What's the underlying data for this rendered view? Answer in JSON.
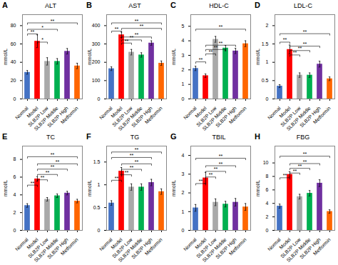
{
  "chart_data": [
    {
      "type": "bar",
      "panel_label": "A",
      "title": "ALT",
      "ylabel": "mmol/L",
      "categories": [
        "Normal",
        "Model",
        "SLB2P Low",
        "SLB2P Middle",
        "SLB2P High",
        "Metformin"
      ],
      "values": [
        29,
        63,
        41,
        41,
        52,
        36
      ],
      "errors": [
        2,
        7,
        4,
        3,
        3,
        3
      ],
      "colors": [
        "#4472C4",
        "#FF0000",
        "#A9A9A9",
        "#00B050",
        "#7030A0",
        "#FF6600"
      ],
      "ylim": [
        0,
        92
      ],
      "yticks": [
        0,
        20,
        40,
        60,
        80
      ],
      "brackets": [
        {
          "x1": "Normal",
          "x2": "Model",
          "y": 71,
          "label": "**"
        },
        {
          "x1": "Model",
          "x2": "SLB2P Low",
          "y": 62,
          "label": "*"
        },
        {
          "x1": "Normal",
          "x2": "SLB2P Middle",
          "y": 76,
          "label": "*"
        },
        {
          "x1": "Normal",
          "x2": "Metformin",
          "y": 83,
          "label": "**"
        }
      ]
    },
    {
      "type": "bar",
      "panel_label": "B",
      "title": "AST",
      "ylabel": "mmol/L",
      "categories": [
        "Normal",
        "Model",
        "SLB2P Low",
        "SLB2P Middle",
        "SLB2P High",
        "Metformin"
      ],
      "values": [
        165,
        350,
        255,
        240,
        305,
        195
      ],
      "errors": [
        10,
        15,
        15,
        12,
        12,
        12
      ],
      "colors": [
        "#4472C4",
        "#FF0000",
        "#A9A9A9",
        "#00B050",
        "#7030A0",
        "#FF6600"
      ],
      "ylim": [
        0,
        460
      ],
      "yticks": [
        0,
        100,
        200,
        300,
        400
      ],
      "brackets": [
        {
          "x1": "Normal",
          "x2": "Model",
          "y": 370,
          "label": "**"
        },
        {
          "x1": "Model",
          "x2": "SLB2P Low",
          "y": 305,
          "label": "**"
        },
        {
          "x1": "Model",
          "x2": "SLB2P Middle",
          "y": 322,
          "label": "**"
        },
        {
          "x1": "Model",
          "x2": "SLB2P High",
          "y": 338,
          "label": "**"
        },
        {
          "x1": "Model",
          "x2": "Metformin",
          "y": 385,
          "label": "**"
        },
        {
          "x1": "Normal",
          "x2": "Metformin",
          "y": 415,
          "label": "**"
        }
      ]
    },
    {
      "type": "bar",
      "panel_label": "C",
      "title": "HDL-C",
      "ylabel": "mmol/L",
      "categories": [
        "Normal",
        "Model",
        "SLB2P Low",
        "SLB2P Middle",
        "SLB2P High",
        "Metformin"
      ],
      "values": [
        2.1,
        1.6,
        4.1,
        3.5,
        3.3,
        3.8
      ],
      "errors": [
        0.15,
        0.12,
        0.2,
        0.18,
        0.18,
        0.2
      ],
      "colors": [
        "#4472C4",
        "#FF0000",
        "#A9A9A9",
        "#00B050",
        "#7030A0",
        "#FF6600"
      ],
      "ylim": [
        0,
        5.8
      ],
      "yticks": [
        0,
        1,
        2,
        3,
        4,
        5
      ],
      "brackets": [
        {
          "x1": "Normal",
          "x2": "Model",
          "y": 2.55,
          "label": "**"
        },
        {
          "x1": "Model",
          "x2": "SLB2P Low",
          "y": 3.1,
          "label": "**"
        },
        {
          "x1": "Model",
          "x2": "SLB2P Middle",
          "y": 3.4,
          "label": "**"
        },
        {
          "x1": "Model",
          "x2": "SLB2P High",
          "y": 3.7,
          "label": "**"
        },
        {
          "x1": "Normal",
          "x2": "Metformin",
          "y": 4.8,
          "label": "**"
        }
      ]
    },
    {
      "type": "bar",
      "panel_label": "D",
      "title": "LDL-C",
      "ylabel": "mmol/L",
      "categories": [
        "Normal",
        "Model",
        "SLB2P Low",
        "SLB2P Middle",
        "SLB2P High",
        "Metformin"
      ],
      "values": [
        0.35,
        1.35,
        0.65,
        0.65,
        0.95,
        0.55
      ],
      "errors": [
        0.04,
        0.12,
        0.06,
        0.06,
        0.08,
        0.05
      ],
      "colors": [
        "#4472C4",
        "#FF0000",
        "#A9A9A9",
        "#00B050",
        "#7030A0",
        "#FF6600"
      ],
      "ylim": [
        0,
        2.3
      ],
      "yticks": [
        0,
        0.5,
        1,
        1.5,
        2
      ],
      "brackets": [
        {
          "x1": "Normal",
          "x2": "Model",
          "y": 1.55,
          "label": "**"
        },
        {
          "x1": "Model",
          "x2": "SLB2P Low",
          "y": 1.2,
          "label": "**"
        },
        {
          "x1": "Model",
          "x2": "SLB2P Middle",
          "y": 1.32,
          "label": "**"
        },
        {
          "x1": "Model",
          "x2": "SLB2P High",
          "y": 1.44,
          "label": "**"
        },
        {
          "x1": "Normal",
          "x2": "Metformin",
          "y": 1.78,
          "label": "**"
        }
      ]
    },
    {
      "type": "bar",
      "panel_label": "E",
      "title": "TC",
      "ylabel": "mmol/L",
      "categories": [
        "Normal",
        "Model",
        "SLB2P Low",
        "SLB2P Middle",
        "SLB2P High",
        "Metformin"
      ],
      "values": [
        2.8,
        5.8,
        3.5,
        3.9,
        4.2,
        3.3
      ],
      "errors": [
        0.2,
        0.25,
        0.2,
        0.2,
        0.2,
        0.2
      ],
      "colors": [
        "#4472C4",
        "#FF0000",
        "#A9A9A9",
        "#00B050",
        "#7030A0",
        "#FF6600"
      ],
      "ylim": [
        0,
        9.5
      ],
      "yticks": [
        0,
        2,
        4,
        6,
        8
      ],
      "brackets": [
        {
          "x1": "Normal",
          "x2": "Model",
          "y": 5.1,
          "label": "**"
        },
        {
          "x1": "Model",
          "x2": "SLB2P Low",
          "y": 5.7,
          "label": "**"
        },
        {
          "x1": "Model",
          "x2": "SLB2P Middle",
          "y": 6.3,
          "label": "**"
        },
        {
          "x1": "Model",
          "x2": "SLB2P High",
          "y": 6.9,
          "label": "**"
        },
        {
          "x1": "Model",
          "x2": "Metformin",
          "y": 7.5,
          "label": "**"
        },
        {
          "x1": "Normal",
          "x2": "Metformin",
          "y": 8.3,
          "label": "**"
        }
      ]
    },
    {
      "type": "bar",
      "panel_label": "F",
      "title": "TG",
      "ylabel": "mmol/L",
      "categories": [
        "Normal",
        "Model",
        "SLB2P Low",
        "SLB2P Middle",
        "SLB2P High",
        "Metformin"
      ],
      "values": [
        0.6,
        1.3,
        0.95,
        0.95,
        1.05,
        0.85
      ],
      "errors": [
        0.05,
        0.08,
        0.07,
        0.07,
        0.07,
        0.06
      ],
      "colors": [
        "#4472C4",
        "#FF0000",
        "#A9A9A9",
        "#00B050",
        "#7030A0",
        "#FF6600"
      ],
      "ylim": [
        0,
        1.85
      ],
      "yticks": [
        0,
        0.5,
        1,
        1.5
      ],
      "brackets": [
        {
          "x1": "Normal",
          "x2": "Model",
          "y": 1.1,
          "label": "**"
        },
        {
          "x1": "Model",
          "x2": "SLB2P Low",
          "y": 1.22,
          "label": "**"
        },
        {
          "x1": "Model",
          "x2": "SLB2P Middle",
          "y": 1.34,
          "label": "**"
        },
        {
          "x1": "Model",
          "x2": "SLB2P High",
          "y": 1.46,
          "label": "**"
        },
        {
          "x1": "Normal",
          "x2": "SLB2P High",
          "y": 1.6,
          "label": "**"
        },
        {
          "x1": "Normal",
          "x2": "Metformin",
          "y": 1.72,
          "label": "**"
        }
      ]
    },
    {
      "type": "bar",
      "panel_label": "G",
      "title": "TBIL",
      "ylabel": "mmol/L",
      "categories": [
        "Normal",
        "Model",
        "SLB2P Low",
        "SLB2P Middle",
        "SLB2P High",
        "Metformin"
      ],
      "values": [
        1.2,
        2.8,
        1.5,
        1.4,
        1.5,
        1.25
      ],
      "errors": [
        0.18,
        0.3,
        0.18,
        0.15,
        0.2,
        0.18
      ],
      "colors": [
        "#4472C4",
        "#FF0000",
        "#A9A9A9",
        "#00B050",
        "#7030A0",
        "#FF6600"
      ],
      "ylim": [
        0,
        4.5
      ],
      "yticks": [
        0,
        1,
        2,
        3,
        4
      ],
      "brackets": [
        {
          "x1": "Normal",
          "x2": "Model",
          "y": 2.5,
          "label": "**"
        },
        {
          "x1": "Model",
          "x2": "SLB2P Low",
          "y": 2.85,
          "label": "**"
        },
        {
          "x1": "Model",
          "x2": "SLB2P Middle",
          "y": 3.15,
          "label": "**"
        },
        {
          "x1": "Model",
          "x2": "SLB2P High",
          "y": 3.45,
          "label": "**"
        },
        {
          "x1": "Normal",
          "x2": "Metformin",
          "y": 3.85,
          "label": "**"
        }
      ]
    },
    {
      "type": "bar",
      "panel_label": "H",
      "title": "FBG",
      "ylabel": "mmol/L",
      "categories": [
        "Normal",
        "Model",
        "SLB2P Low",
        "SLB2P Middle",
        "SLB2P High",
        "Metformin"
      ],
      "values": [
        3.6,
        8.3,
        5.0,
        5.5,
        7.0,
        2.8
      ],
      "errors": [
        0.3,
        0.4,
        0.35,
        0.4,
        0.5,
        0.25
      ],
      "colors": [
        "#4472C4",
        "#FF0000",
        "#A9A9A9",
        "#00B050",
        "#7030A0",
        "#FF6600"
      ],
      "ylim": [
        0,
        12.5
      ],
      "yticks": [
        0,
        2,
        4,
        6,
        8,
        10
      ],
      "brackets": [
        {
          "x1": "Normal",
          "x2": "Model",
          "y": 7.8,
          "label": "**"
        },
        {
          "x1": "Model",
          "x2": "SLB2P Low",
          "y": 8.5,
          "label": "**"
        },
        {
          "x1": "Model",
          "x2": "SLB2P Middle",
          "y": 9.2,
          "label": "**"
        },
        {
          "x1": "Model",
          "x2": "SLB2P High",
          "y": 9.9,
          "label": "**"
        },
        {
          "x1": "Normal",
          "x2": "Metformin",
          "y": 11.0,
          "label": "**"
        }
      ]
    }
  ]
}
